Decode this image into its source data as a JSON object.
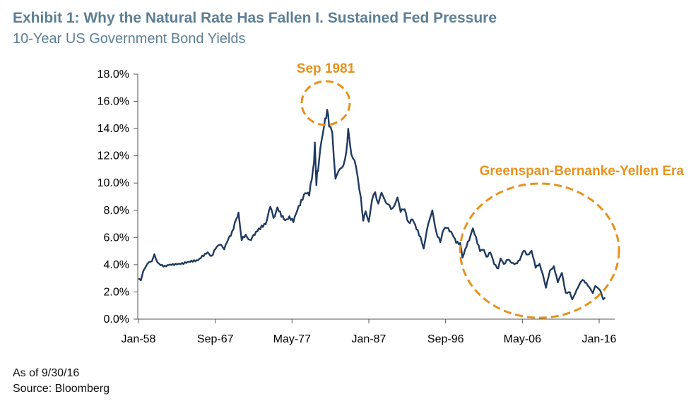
{
  "header": {
    "title": "Exhibit 1: Why the Natural Rate Has Fallen I. Sustained Fed Pressure",
    "subtitle": "10-Year US Government Bond Yields"
  },
  "footer": {
    "as_of": "As of 9/30/16",
    "source": "Source: Bloomberg"
  },
  "colors": {
    "line": "#1f3a5f",
    "annotation": "#e8921d",
    "title": "#5c7f96"
  },
  "chart_data": {
    "type": "line",
    "title": "10-Year US Government Bond Yields",
    "xlabel": "",
    "ylabel": "",
    "xlim": [
      1958.0,
      2016.75
    ],
    "ylim": [
      0,
      18
    ],
    "y_ticks": [
      0,
      2,
      4,
      6,
      8,
      10,
      12,
      14,
      16,
      18
    ],
    "y_tick_labels": [
      "0.0%",
      "2.0%",
      "4.0%",
      "6.0%",
      "8.0%",
      "10.0%",
      "12.0%",
      "14.0%",
      "16.0%",
      "18.0%"
    ],
    "x_ticks": [
      1958.0,
      1967.67,
      1977.33,
      1987.0,
      1996.67,
      2006.33,
      2016.0
    ],
    "x_tick_labels": [
      "Jan-58",
      "Sep-67",
      "May-77",
      "Jan-87",
      "Sep-96",
      "May-06",
      "Jan-16"
    ],
    "series": [
      {
        "name": "10-Year US Government Bond Yield",
        "x": [
          1958.0,
          1958.3,
          1958.6,
          1958.9,
          1959.3,
          1959.7,
          1960.0,
          1960.4,
          1960.8,
          1961.3,
          1961.8,
          1962.5,
          1963.5,
          1964.5,
          1965.5,
          1966.2,
          1966.7,
          1967.2,
          1967.7,
          1968.2,
          1968.8,
          1969.3,
          1969.8,
          1970.3,
          1970.6,
          1971.0,
          1971.5,
          1972.0,
          1972.8,
          1973.5,
          1974.0,
          1974.6,
          1975.0,
          1975.5,
          1976.0,
          1976.5,
          1977.0,
          1977.5,
          1978.0,
          1978.5,
          1979.0,
          1979.5,
          1980.0,
          1980.2,
          1980.4,
          1980.6,
          1980.9,
          1981.2,
          1981.5,
          1981.75,
          1982.0,
          1982.4,
          1982.8,
          1983.2,
          1983.6,
          1984.0,
          1984.3,
          1984.5,
          1984.8,
          1985.2,
          1985.6,
          1986.0,
          1986.3,
          1986.6,
          1987.0,
          1987.4,
          1987.8,
          1988.2,
          1988.6,
          1989.0,
          1989.4,
          1989.8,
          1990.2,
          1990.6,
          1991.0,
          1991.5,
          1992.0,
          1992.5,
          1993.0,
          1993.5,
          1993.9,
          1994.3,
          1994.7,
          1995.0,
          1995.5,
          1996.0,
          1996.3,
          1996.6,
          1997.0,
          1997.5,
          1998.0,
          1998.5,
          1998.8,
          1999.3,
          1999.8,
          2000.1,
          2000.5,
          2001.0,
          2001.5,
          2001.8,
          2002.3,
          2002.8,
          2003.3,
          2003.6,
          2004.0,
          2004.5,
          2005.0,
          2005.5,
          2006.0,
          2006.5,
          2007.0,
          2007.5,
          2008.0,
          2008.5,
          2008.9,
          2009.3,
          2009.8,
          2010.3,
          2010.8,
          2011.3,
          2011.8,
          2012.3,
          2012.6,
          2013.0,
          2013.5,
          2013.9,
          2014.4,
          2014.9,
          2015.2,
          2015.5,
          2015.9,
          2016.2,
          2016.5,
          2016.75
        ],
        "values": [
          3.0,
          2.8,
          3.5,
          3.8,
          4.1,
          4.4,
          4.7,
          4.2,
          3.9,
          3.8,
          3.9,
          3.95,
          4.0,
          4.15,
          4.25,
          4.6,
          4.8,
          4.5,
          5.1,
          5.4,
          5.3,
          6.0,
          6.5,
          7.5,
          7.8,
          6.0,
          6.3,
          5.9,
          6.4,
          6.9,
          7.1,
          8.0,
          7.4,
          8.2,
          7.6,
          7.2,
          7.4,
          7.1,
          7.9,
          8.5,
          9.1,
          9.0,
          10.8,
          12.8,
          10.0,
          11.2,
          12.5,
          13.5,
          14.5,
          15.8,
          13.8,
          13.5,
          10.5,
          10.8,
          11.4,
          11.8,
          13.4,
          13.8,
          12.2,
          11.5,
          10.5,
          9.2,
          7.3,
          7.8,
          7.2,
          8.5,
          9.4,
          8.7,
          9.2,
          8.9,
          8.3,
          7.9,
          8.5,
          8.9,
          8.0,
          8.1,
          7.0,
          7.3,
          6.6,
          5.9,
          5.3,
          6.5,
          7.5,
          7.8,
          6.2,
          5.6,
          6.4,
          6.8,
          6.5,
          6.2,
          5.6,
          5.5,
          4.6,
          5.5,
          6.2,
          6.7,
          6.0,
          5.1,
          5.2,
          4.6,
          5.0,
          4.1,
          3.7,
          4.4,
          4.1,
          4.5,
          4.2,
          4.1,
          4.4,
          5.1,
          4.7,
          5.0,
          3.8,
          4.0,
          3.4,
          2.3,
          3.5,
          3.8,
          2.7,
          3.4,
          1.9,
          2.0,
          1.5,
          1.9,
          2.5,
          2.9,
          2.6,
          2.2,
          1.9,
          2.4,
          2.2,
          2.0,
          1.5,
          1.6
        ]
      }
    ],
    "annotations": [
      {
        "label": "Sep 1981",
        "x": 1981.75,
        "y": 15.8
      },
      {
        "label": "Greenspan-Bernanke-Yellen Era",
        "x_range": [
          1998.5,
          2018.5
        ]
      }
    ]
  }
}
